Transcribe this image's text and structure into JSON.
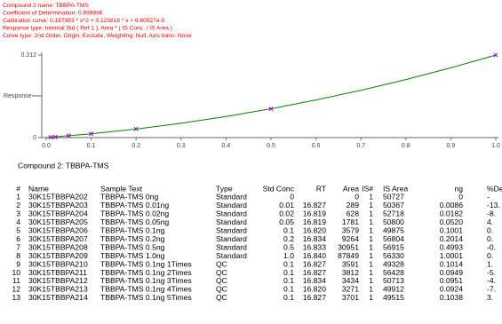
{
  "header": {
    "lines": [
      "Compound 2 name: TBBPA-TMS",
      "Coefficient of Determination: 0.999996",
      "Calibration curve: 0.187983 * x^2 + 0.123818 * x + 6.60927e-5",
      "Response type: Internal Std ( Ref 1 ), Area * ( IS Conc. / IS Area )",
      "Curve type: 2nd Order, Origin: Exclude, Weighting: Null, Axis trans: None"
    ]
  },
  "chart_data": {
    "type": "scatter",
    "ylabel": "Response",
    "xlim": [
      0,
      1
    ],
    "ylim": [
      0,
      0.312
    ],
    "xticks": [
      {
        "value": 0,
        "label": "0.0"
      },
      0.1,
      0.2,
      0.3,
      0.4,
      0.5,
      0.6,
      0.7,
      0.8,
      0.9,
      {
        "value": 1,
        "label": "1.0"
      }
    ],
    "yticks": [
      0,
      0.312
    ],
    "points": {
      "color": "#9900cc",
      "x": [
        0.01,
        0.02,
        0.05,
        0.1,
        0.2,
        0.5,
        1.0
      ],
      "values": [
        0.0011,
        0.0024,
        0.007,
        0.0144,
        0.0326,
        0.1088,
        0.3119
      ]
    },
    "curve": {
      "color": "#008000",
      "x": [
        0,
        0.1,
        0.2,
        0.3,
        0.4,
        0.5,
        0.6,
        0.7,
        0.8,
        0.9,
        1.0
      ],
      "values": [
        0.0001,
        0.0143,
        0.0323,
        0.0541,
        0.0797,
        0.109,
        0.142,
        0.1788,
        0.2194,
        0.2637,
        0.3119
      ]
    }
  },
  "section_title": "Compound 2: TBBPA-TMS",
  "table": {
    "columns": [
      "#",
      "Name",
      "Sample Text",
      "Type",
      "Std Conc",
      "RT",
      "Area",
      "IS#",
      "IS Area",
      "ng",
      "%De"
    ],
    "rows": [
      [
        "1",
        "30K15TBBPA202",
        "TBBPA-TMS 0ng",
        "Standard",
        "0",
        null,
        "0",
        "1",
        "50727",
        "0",
        "-"
      ],
      [
        "2",
        "30K15TBBPA203",
        "TBBPA-TMS 0.01ng",
        "Standard",
        "0.01",
        "16.827",
        "289",
        "1",
        "50367",
        "0.0086",
        "-13."
      ],
      [
        "3",
        "30K15TBBPA204",
        "TBBPA-TMS 0.02ng",
        "Standard",
        "0.02",
        "16.819",
        "628",
        "1",
        "52718",
        "0.0182",
        "-8."
      ],
      [
        "4",
        "30K15TBBPA205",
        "TBBPA-TMS 0.05ng",
        "Standard",
        "0.05",
        "16.819",
        "1781",
        "1",
        "50800",
        "0.0520",
        "4."
      ],
      [
        "5",
        "30K15TBBPA206",
        "TBBPA-TMS 0.1ng",
        "Standard",
        "0.1",
        "16.820",
        "3579",
        "1",
        "49875",
        "0.1001",
        "0."
      ],
      [
        "6",
        "30K15TBBPA207",
        "TBBPA-TMS 0.2ng",
        "Standard",
        "0.2",
        "16.834",
        "9264",
        "1",
        "56804",
        "0.2014",
        "0."
      ],
      [
        "7",
        "30K15TBBPA208",
        "TBBPA-TMS 0.5ng",
        "Standard",
        "0.5",
        "16.833",
        "30951",
        "1",
        "56915",
        "0.4993",
        "-0."
      ],
      [
        "8",
        "30K15TBBPA209",
        "TBBPA-TMS 1.0ng",
        "Standard",
        "1.0",
        "16.840",
        "87849",
        "1",
        "56330",
        "1.0001",
        "0."
      ],
      [
        "9",
        "30K15TBBPA210",
        "TBBPA-TMS 0.1ng 1Times",
        "QC",
        "0.1",
        "16.827",
        "3591",
        "1",
        "49328",
        "0.1014",
        "1."
      ],
      [
        "10",
        "30K15TBBPA211",
        "TBBPA-TMS 0.1ng 2Times",
        "QC",
        "0.1",
        "16.827",
        "3812",
        "1",
        "56428",
        "0.0949",
        "-5."
      ],
      [
        "11",
        "30K15TBBPA212",
        "TBBPA-TMS 0.1ng 3Times",
        "QC",
        "0.1",
        "16.834",
        "3434",
        "1",
        "50713",
        "0.0951",
        "-4."
      ],
      [
        "12",
        "30K15TBBPA213",
        "TBBPA-TMS 0.1ng 4Times",
        "QC",
        "0.1",
        "16.820",
        "3271",
        "1",
        "49912",
        "0.0924",
        "-7."
      ],
      [
        "13",
        "30K15TBBPA214",
        "TBBPA-TMS 0.1ng 5Times",
        "QC",
        "0.1",
        "16.827",
        "3701",
        "1",
        "49515",
        "0.1038",
        "3."
      ]
    ]
  }
}
